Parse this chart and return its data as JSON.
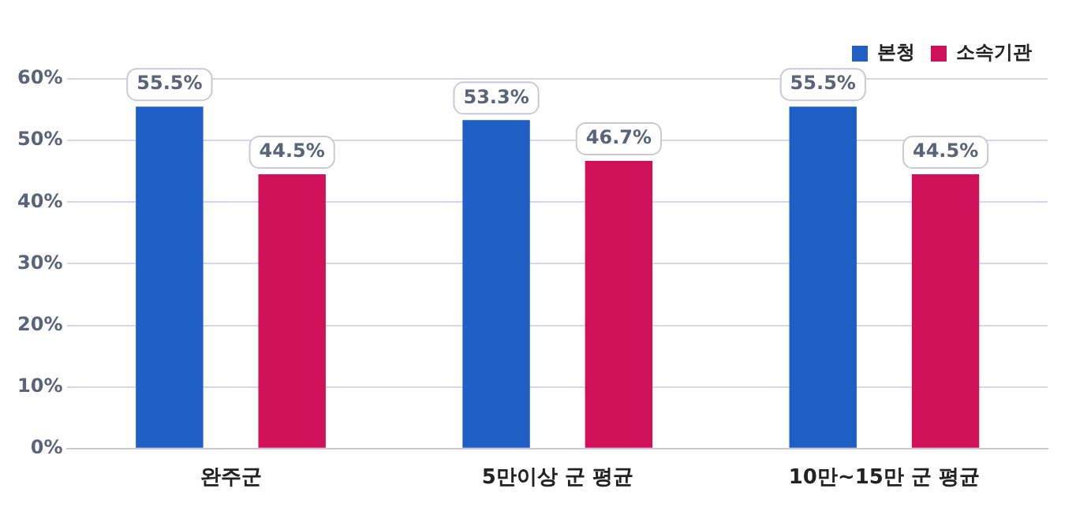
{
  "chart_data": {
    "type": "bar",
    "categories": [
      "완주군",
      "5만이상 군 평균",
      "10만~15만 군 평균"
    ],
    "series": [
      {
        "name": "본청",
        "color": "#1f5fc4",
        "values": [
          55.5,
          53.3,
          55.5
        ],
        "value_labels": [
          "55.5%",
          "53.3%",
          "55.5%"
        ]
      },
      {
        "name": "소속기관",
        "color": "#d1105a",
        "values": [
          44.5,
          46.7,
          44.5
        ],
        "value_labels": [
          "44.5%",
          "46.7%",
          "44.5%"
        ]
      }
    ],
    "ylim": [
      0,
      60
    ],
    "yticks": [
      {
        "value": 0,
        "label": "0%"
      },
      {
        "value": 10,
        "label": "10%"
      },
      {
        "value": 20,
        "label": "20%"
      },
      {
        "value": 30,
        "label": "30%"
      },
      {
        "value": 40,
        "label": "40%"
      },
      {
        "value": 50,
        "label": "50%"
      },
      {
        "value": 60,
        "label": "60%"
      }
    ],
    "grid": "y",
    "legend": "top right"
  }
}
